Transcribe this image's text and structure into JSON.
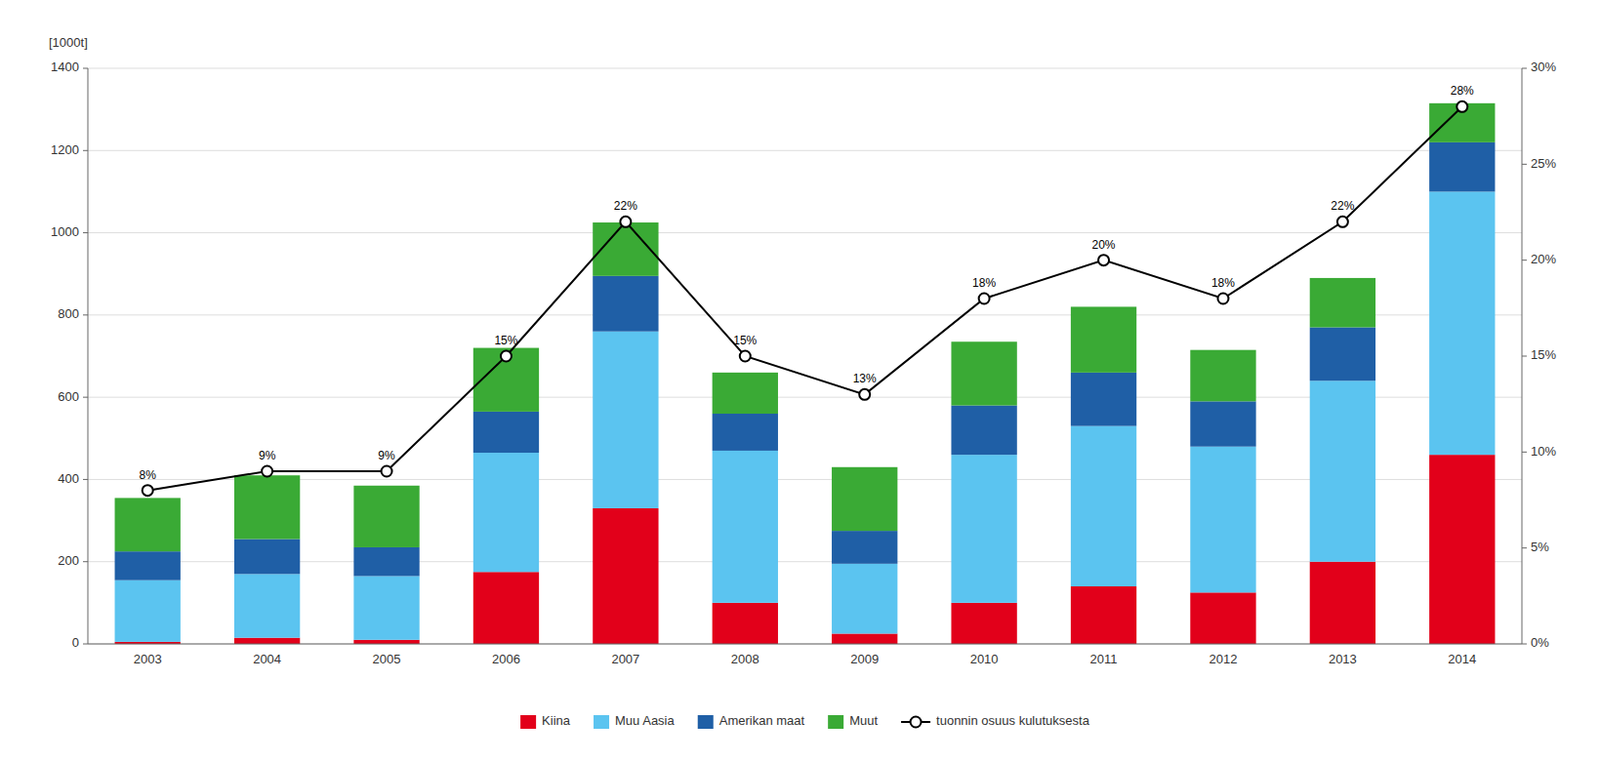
{
  "chart_data": {
    "type": "bar",
    "stacked": true,
    "y_label": "[1000t]",
    "categories": [
      "2003",
      "2004",
      "2005",
      "2006",
      "2007",
      "2008",
      "2009",
      "2010",
      "2011",
      "2012",
      "2013",
      "2014"
    ],
    "series": [
      {
        "name": "Kiina",
        "color": "#e2001a",
        "values": [
          5,
          15,
          10,
          175,
          330,
          100,
          25,
          100,
          140,
          125,
          200,
          460
        ]
      },
      {
        "name": "Muu Aasia",
        "color": "#5bc4f0",
        "values": [
          150,
          155,
          155,
          290,
          430,
          370,
          170,
          360,
          390,
          355,
          440,
          640
        ]
      },
      {
        "name": "Amerikan maat",
        "color": "#1f5fa6",
        "values": [
          70,
          85,
          70,
          100,
          135,
          90,
          80,
          120,
          130,
          110,
          130,
          120
        ]
      },
      {
        "name": "Muut",
        "color": "#3aaa35",
        "values": [
          130,
          155,
          150,
          155,
          130,
          100,
          155,
          155,
          160,
          125,
          120,
          95
        ]
      },
      {
        "name": "tuonnin osuus kulutuksesta",
        "type": "line",
        "axis": "y2",
        "color": "#000000",
        "marker": "circle",
        "data_labels": true,
        "values": [
          8,
          9,
          9,
          15,
          22,
          15,
          13,
          18,
          20,
          18,
          22,
          28
        ],
        "value_labels": [
          "8%",
          "9%",
          "9%",
          "15%",
          "22%",
          "15%",
          "13%",
          "18%",
          "20%",
          "18%",
          "22%",
          "28%"
        ]
      }
    ],
    "ylim": [
      0,
      1400
    ],
    "yticks": [
      0,
      200,
      400,
      600,
      800,
      1000,
      1200,
      1400
    ],
    "y2lim": [
      0,
      30
    ],
    "y2ticks": [
      {
        "value": 0,
        "label": "0%"
      },
      {
        "value": 5,
        "label": "5%"
      },
      {
        "value": 10,
        "label": "10%"
      },
      {
        "value": 15,
        "label": "15%"
      },
      {
        "value": 20,
        "label": "20%"
      },
      {
        "value": 25,
        "label": "25%"
      },
      {
        "value": 30,
        "label": "30%"
      }
    ],
    "grid": true,
    "legend": "bottom"
  }
}
